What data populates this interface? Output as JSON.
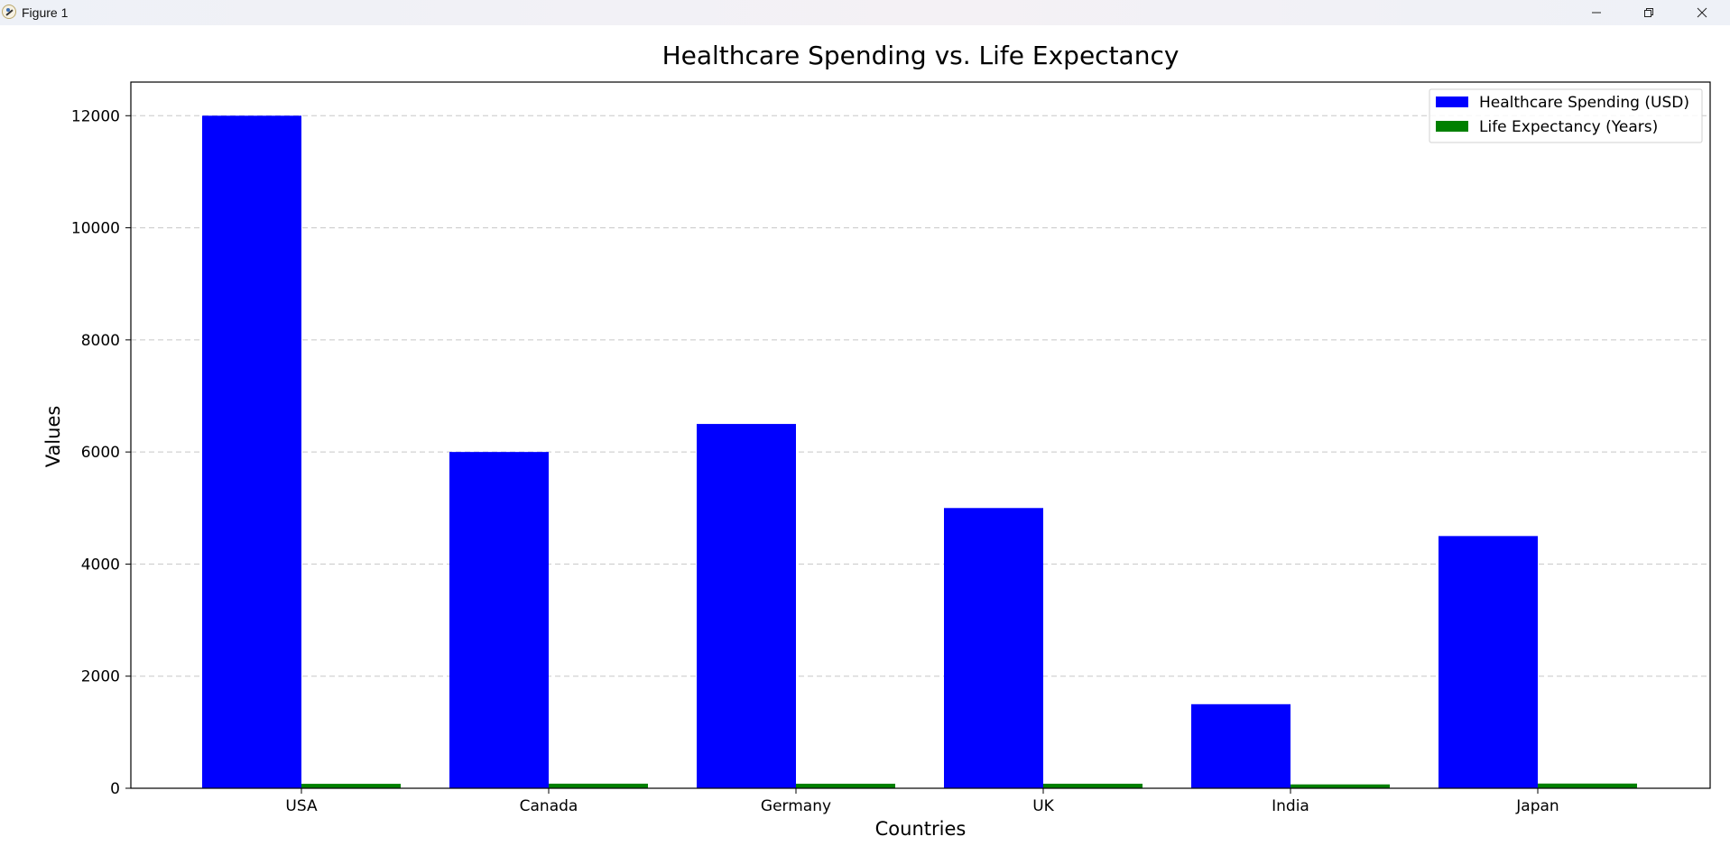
{
  "window": {
    "title": "Figure 1"
  },
  "chart_data": {
    "type": "bar",
    "title": "Healthcare Spending vs. Life Expectancy",
    "xlabel": "Countries",
    "ylabel": "Values",
    "categories": [
      "USA",
      "Canada",
      "Germany",
      "UK",
      "India",
      "Japan"
    ],
    "series": [
      {
        "name": "Healthcare Spending (USD)",
        "color": "#0000ff",
        "values": [
          12000,
          6000,
          6500,
          5000,
          1500,
          4500
        ]
      },
      {
        "name": "Life Expectancy (Years)",
        "color": "#008000",
        "values": [
          79,
          82,
          81,
          81,
          69,
          84
        ]
      }
    ],
    "ylim": [
      0,
      12600
    ],
    "yticks": [
      0,
      2000,
      4000,
      6000,
      8000,
      10000,
      12000
    ],
    "grid": "y-dashed",
    "legend_position": "top-right"
  }
}
